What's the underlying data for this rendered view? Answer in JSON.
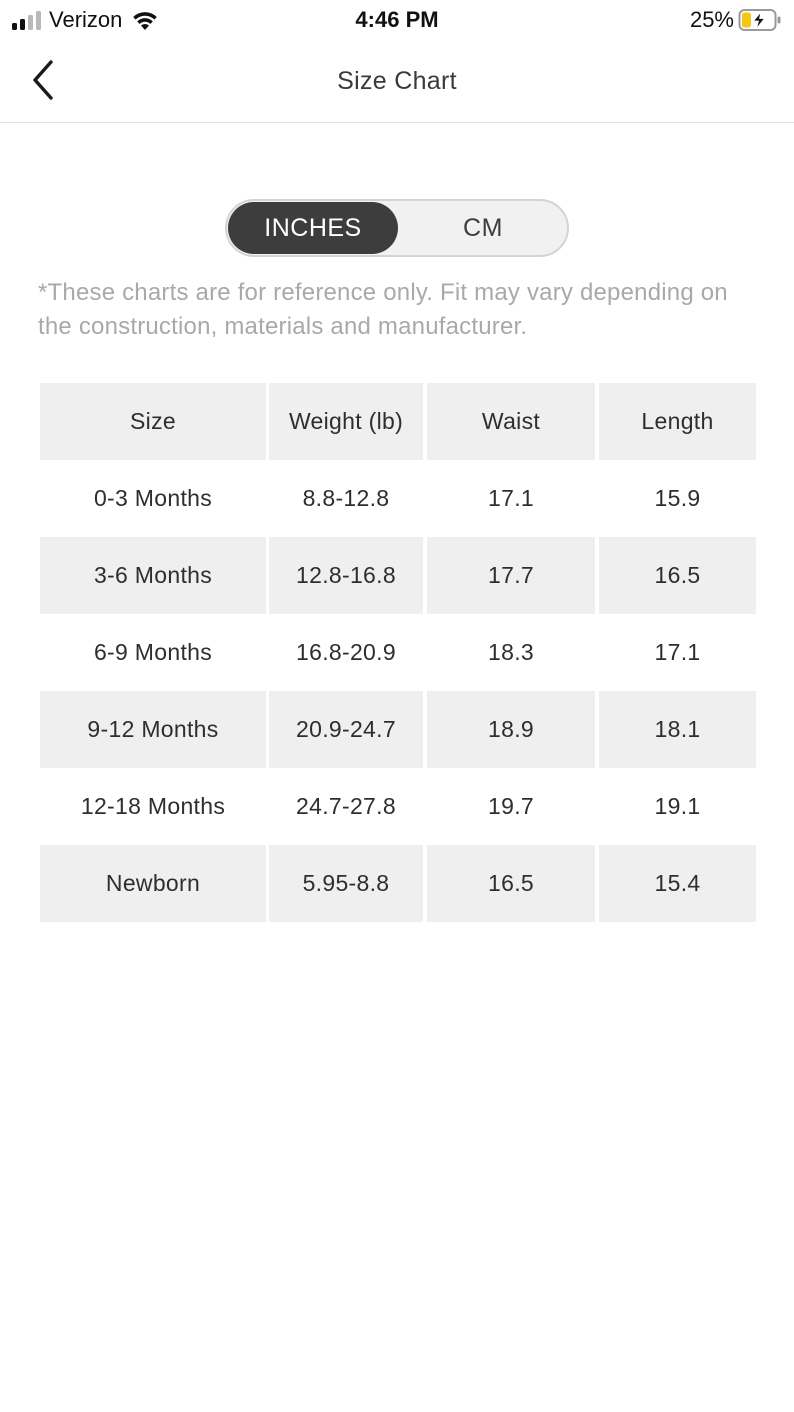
{
  "status_bar": {
    "carrier": "Verizon",
    "time": "4:46 PM",
    "battery_percent": "25%",
    "icons": [
      "cellular-signal-icon",
      "wifi-icon",
      "battery-charging-icon"
    ]
  },
  "nav": {
    "title": "Size Chart",
    "back_icon": "chevron-left-icon"
  },
  "unit_toggle": {
    "options": [
      "INCHES",
      "CM"
    ],
    "selected": "INCHES"
  },
  "disclaimer": "*These charts are for reference only. Fit may vary depending on the construction, materials and manufacturer.",
  "table": {
    "headers": [
      "Size",
      "Weight (lb)",
      "Waist",
      "Length"
    ],
    "rows": [
      [
        "0-3 Months",
        "8.8-12.8",
        "17.1",
        "15.9"
      ],
      [
        "3-6 Months",
        "12.8-16.8",
        "17.7",
        "16.5"
      ],
      [
        "6-9 Months",
        "16.8-20.9",
        "18.3",
        "17.1"
      ],
      [
        "9-12 Months",
        "20.9-24.7",
        "18.9",
        "18.1"
      ],
      [
        "12-18 Months",
        "24.7-27.8",
        "19.7",
        "19.1"
      ],
      [
        "Newborn",
        "5.95-8.8",
        "16.5",
        "15.4"
      ]
    ]
  },
  "colors": {
    "toggle_active_bg": "#3d3d3d",
    "table_shade": "#efefef",
    "disclaimer_text": "#a9a9a9",
    "battery_fill": "#f5c518"
  }
}
